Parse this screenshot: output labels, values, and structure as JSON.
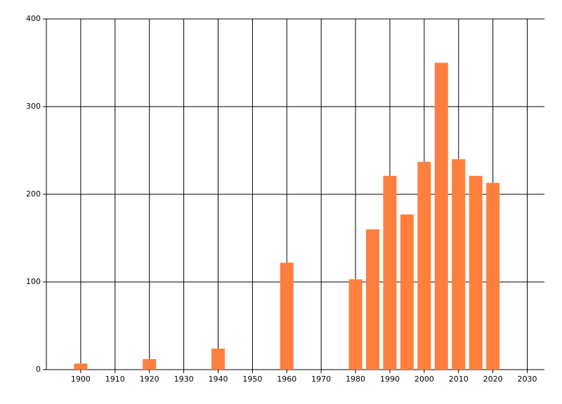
{
  "chart_data": {
    "type": "bar",
    "x": [
      1900,
      1920,
      1940,
      1960,
      1980,
      1985,
      1990,
      1995,
      2000,
      2005,
      2010,
      2015,
      2020
    ],
    "values": [
      7,
      12,
      24,
      122,
      103,
      160,
      221,
      177,
      237,
      350,
      240,
      221,
      213
    ],
    "color": "#ff7f3f",
    "xlim": [
      1890,
      2035
    ],
    "xticks": [
      1900,
      1910,
      1920,
      1930,
      1940,
      1950,
      1960,
      1970,
      1980,
      1990,
      2000,
      2010,
      2020,
      2030
    ],
    "ylim": [
      0,
      400
    ],
    "yticks": [
      0,
      100,
      200,
      300,
      400
    ],
    "grid": true
  }
}
